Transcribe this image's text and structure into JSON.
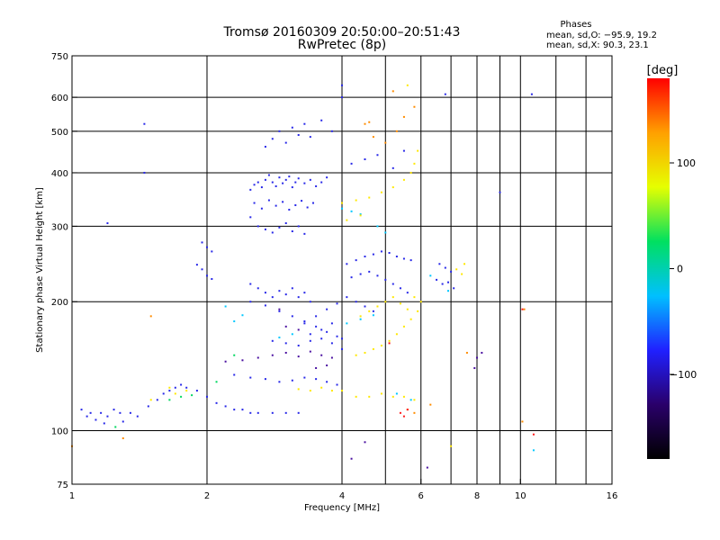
{
  "header": {
    "title": "Tromsø 20160309 20:50:00–20:51:43",
    "subtitle": "RwPretec (8p)"
  },
  "phases_box": {
    "title": "Phases",
    "line_o": "mean, sd,O: −95.9, 19.2",
    "line_x": "mean, sd,X:  90.3, 23.1"
  },
  "chart_data": {
    "type": "scatter",
    "title": "Tromsø 20160309 20:50:00–20:51:43",
    "subtitle": "RwPretec (8p)",
    "xlabel": "Frequency [MHz]",
    "ylabel": "Stationary phase Virtual Height [km]",
    "x_scale": "log",
    "y_scale": "log",
    "xlim": [
      1,
      16
    ],
    "ylim": [
      75,
      750
    ],
    "x_ticks": [
      1,
      2,
      4,
      6,
      8,
      10,
      16
    ],
    "x_minor_ticks": [
      5,
      7,
      9,
      12,
      14
    ],
    "y_ticks": [
      75,
      100,
      200,
      300,
      400,
      500,
      600,
      750
    ],
    "grid": true,
    "colorbar": {
      "label": "[deg]",
      "range": [
        -180,
        180
      ],
      "ticks": [
        100,
        0,
        -100
      ],
      "stops": [
        "#000000",
        "#2a006a",
        "#2020ff",
        "#00c0ff",
        "#00e060",
        "#e6ff00",
        "#ffa000",
        "#ff0000"
      ]
    },
    "series": [
      {
        "name": "",
        "color": "#2828e8",
        "points": [
          [
            1.05,
            112
          ],
          [
            1.08,
            108
          ],
          [
            1.1,
            110
          ],
          [
            1.13,
            106
          ],
          [
            1.16,
            110
          ],
          [
            1.18,
            104
          ],
          [
            1.2,
            108
          ],
          [
            1.24,
            112
          ],
          [
            1.28,
            110
          ],
          [
            1.3,
            105
          ],
          [
            1.35,
            110
          ],
          [
            1.4,
            108
          ],
          [
            1.48,
            114
          ],
          [
            1.55,
            118
          ],
          [
            1.6,
            122
          ],
          [
            1.65,
            124
          ],
          [
            1.7,
            126
          ],
          [
            1.75,
            128
          ],
          [
            1.8,
            126
          ],
          [
            1.9,
            124
          ],
          [
            2.0,
            120
          ],
          [
            2.1,
            116
          ],
          [
            2.2,
            114
          ],
          [
            2.3,
            112
          ],
          [
            2.4,
            112
          ],
          [
            2.5,
            110
          ],
          [
            2.6,
            110
          ],
          [
            2.8,
            110
          ],
          [
            3.0,
            110
          ],
          [
            3.2,
            110
          ],
          [
            2.5,
            365
          ],
          [
            2.55,
            375
          ],
          [
            2.6,
            380
          ],
          [
            2.65,
            370
          ],
          [
            2.7,
            385
          ],
          [
            2.75,
            395
          ],
          [
            2.8,
            380
          ],
          [
            2.85,
            372
          ],
          [
            2.9,
            390
          ],
          [
            2.95,
            378
          ],
          [
            3.0,
            385
          ],
          [
            3.05,
            392
          ],
          [
            3.1,
            370
          ],
          [
            3.15,
            380
          ],
          [
            3.2,
            388
          ],
          [
            3.3,
            378
          ],
          [
            3.4,
            385
          ],
          [
            3.5,
            372
          ],
          [
            3.6,
            380
          ],
          [
            3.7,
            390
          ],
          [
            2.55,
            340
          ],
          [
            2.65,
            330
          ],
          [
            2.75,
            345
          ],
          [
            2.85,
            335
          ],
          [
            2.95,
            342
          ],
          [
            3.05,
            328
          ],
          [
            3.15,
            336
          ],
          [
            3.25,
            344
          ],
          [
            3.35,
            332
          ],
          [
            3.45,
            340
          ],
          [
            2.5,
            315
          ],
          [
            2.6,
            300
          ],
          [
            2.7,
            295
          ],
          [
            2.8,
            290
          ],
          [
            2.9,
            298
          ],
          [
            3.0,
            305
          ],
          [
            3.1,
            292
          ],
          [
            3.2,
            300
          ],
          [
            3.3,
            288
          ],
          [
            2.7,
            460
          ],
          [
            2.8,
            480
          ],
          [
            2.9,
            500
          ],
          [
            3.0,
            470
          ],
          [
            3.1,
            510
          ],
          [
            3.2,
            490
          ],
          [
            3.3,
            520
          ],
          [
            3.4,
            485
          ],
          [
            3.6,
            530
          ],
          [
            3.8,
            500
          ],
          [
            1.95,
            275
          ],
          [
            2.0,
            268
          ],
          [
            2.05,
            262
          ],
          [
            1.95,
            238
          ],
          [
            2.0,
            230
          ],
          [
            2.05,
            226
          ],
          [
            1.9,
            244
          ],
          [
            2.5,
            220
          ],
          [
            2.6,
            215
          ],
          [
            2.7,
            210
          ],
          [
            2.8,
            205
          ],
          [
            2.9,
            212
          ],
          [
            3.0,
            208
          ],
          [
            3.1,
            215
          ],
          [
            3.2,
            205
          ],
          [
            3.3,
            210
          ],
          [
            3.4,
            200
          ],
          [
            2.5,
            200
          ],
          [
            2.7,
            196
          ],
          [
            2.9,
            190
          ],
          [
            3.1,
            185
          ],
          [
            3.3,
            180
          ],
          [
            3.5,
            175
          ],
          [
            3.7,
            170
          ],
          [
            3.9,
            166
          ],
          [
            4.0,
            164
          ],
          [
            2.8,
            162
          ],
          [
            3.0,
            160
          ],
          [
            3.2,
            158
          ],
          [
            3.4,
            162
          ],
          [
            3.6,
            164
          ],
          [
            3.8,
            160
          ],
          [
            4.0,
            155
          ],
          [
            3.3,
            178
          ],
          [
            3.5,
            185
          ],
          [
            3.7,
            192
          ],
          [
            3.9,
            198
          ],
          [
            3.4,
            168
          ],
          [
            3.6,
            172
          ],
          [
            3.8,
            178
          ],
          [
            4.1,
            245
          ],
          [
            4.3,
            250
          ],
          [
            4.5,
            255
          ],
          [
            4.7,
            258
          ],
          [
            4.9,
            262
          ],
          [
            5.1,
            260
          ],
          [
            5.3,
            255
          ],
          [
            5.5,
            252
          ],
          [
            5.7,
            250
          ],
          [
            4.2,
            228
          ],
          [
            4.4,
            232
          ],
          [
            4.6,
            235
          ],
          [
            4.8,
            230
          ],
          [
            5.0,
            225
          ],
          [
            5.2,
            220
          ],
          [
            5.4,
            215
          ],
          [
            5.6,
            210
          ],
          [
            4.1,
            205
          ],
          [
            4.3,
            200
          ],
          [
            4.5,
            195
          ],
          [
            4.7,
            190
          ],
          [
            2.3,
            135
          ],
          [
            2.5,
            133
          ],
          [
            2.7,
            132
          ],
          [
            2.9,
            130
          ],
          [
            3.1,
            131
          ],
          [
            3.3,
            133
          ],
          [
            3.5,
            132
          ],
          [
            3.7,
            130
          ],
          [
            3.9,
            128
          ],
          [
            6.6,
            245
          ],
          [
            6.8,
            240
          ],
          [
            7.0,
            235
          ],
          [
            6.5,
            225
          ],
          [
            6.7,
            220
          ],
          [
            6.9,
            222
          ],
          [
            7.1,
            215
          ],
          [
            4.2,
            420
          ],
          [
            4.5,
            430
          ],
          [
            4.8,
            440
          ],
          [
            5.2,
            410
          ],
          [
            5.5,
            450
          ],
          [
            4.0,
            640
          ],
          [
            4.0,
            600
          ],
          [
            6.8,
            610
          ],
          [
            10.6,
            610
          ],
          [
            1.45,
            400
          ],
          [
            1.45,
            520
          ],
          [
            1.2,
            305
          ],
          [
            9.0,
            360
          ]
        ]
      },
      {
        "name": "",
        "color": "#4a10a0",
        "points": [
          [
            2.6,
            148
          ],
          [
            2.8,
            150
          ],
          [
            3.0,
            152
          ],
          [
            3.2,
            149
          ],
          [
            3.4,
            153
          ],
          [
            3.6,
            150
          ],
          [
            3.8,
            148
          ],
          [
            2.4,
            146
          ],
          [
            2.2,
            145
          ],
          [
            3.0,
            175
          ],
          [
            3.2,
            172
          ],
          [
            2.9,
            192
          ],
          [
            3.5,
            140
          ],
          [
            3.7,
            142
          ],
          [
            8.0,
            148
          ],
          [
            8.2,
            152
          ],
          [
            7.9,
            140
          ],
          [
            6.2,
            82
          ],
          [
            4.5,
            94
          ],
          [
            4.2,
            86
          ]
        ]
      },
      {
        "name": "",
        "color": "#00c8ff",
        "points": [
          [
            4.0,
            330
          ],
          [
            4.2,
            325
          ],
          [
            4.4,
            320
          ],
          [
            4.8,
            300
          ],
          [
            5.0,
            290
          ],
          [
            2.9,
            165
          ],
          [
            3.1,
            168
          ],
          [
            4.1,
            178
          ],
          [
            4.4,
            182
          ],
          [
            4.7,
            186
          ],
          [
            2.3,
            180
          ],
          [
            2.2,
            195
          ],
          [
            2.4,
            186
          ],
          [
            6.3,
            230
          ],
          [
            6.9,
            212
          ],
          [
            5.3,
            122
          ],
          [
            5.7,
            118
          ],
          [
            10.7,
            90
          ]
        ]
      },
      {
        "name": "",
        "color": "#ffe800",
        "points": [
          [
            4.0,
            340
          ],
          [
            4.3,
            345
          ],
          [
            4.6,
            350
          ],
          [
            4.9,
            360
          ],
          [
            5.2,
            370
          ],
          [
            5.5,
            385
          ],
          [
            5.7,
            400
          ],
          [
            5.8,
            420
          ],
          [
            5.9,
            450
          ],
          [
            4.1,
            310
          ],
          [
            4.4,
            318
          ],
          [
            4.3,
            150
          ],
          [
            4.5,
            152
          ],
          [
            4.7,
            155
          ],
          [
            4.9,
            158
          ],
          [
            5.1,
            162
          ],
          [
            5.3,
            168
          ],
          [
            5.5,
            175
          ],
          [
            5.7,
            182
          ],
          [
            5.9,
            190
          ],
          [
            6.0,
            200
          ],
          [
            4.4,
            185
          ],
          [
            4.6,
            190
          ],
          [
            4.8,
            195
          ],
          [
            5.0,
            200
          ],
          [
            5.2,
            205
          ],
          [
            5.4,
            198
          ],
          [
            5.6,
            192
          ],
          [
            5.8,
            205
          ],
          [
            3.2,
            125
          ],
          [
            3.4,
            124
          ],
          [
            3.6,
            126
          ],
          [
            3.8,
            124
          ],
          [
            4.0,
            124
          ],
          [
            4.3,
            120
          ],
          [
            4.6,
            120
          ],
          [
            4.9,
            122
          ],
          [
            5.2,
            120
          ],
          [
            5.5,
            120
          ],
          [
            5.8,
            118
          ],
          [
            1.7,
            122
          ],
          [
            1.8,
            124
          ],
          [
            1.5,
            118
          ],
          [
            1.65,
            126
          ],
          [
            7.2,
            238
          ],
          [
            7.5,
            245
          ],
          [
            7.4,
            232
          ],
          [
            7.0,
            92
          ],
          [
            5.6,
            640
          ]
        ]
      },
      {
        "name": "",
        "color": "#ff8c00",
        "points": [
          [
            4.7,
            485
          ],
          [
            5.0,
            470
          ],
          [
            5.3,
            500
          ],
          [
            5.5,
            540
          ],
          [
            4.5,
            520
          ],
          [
            5.6,
            112
          ],
          [
            5.8,
            110
          ],
          [
            6.3,
            115
          ],
          [
            7.6,
            152
          ],
          [
            10.2,
            192
          ],
          [
            10.1,
            105
          ],
          [
            1.0,
            92
          ],
          [
            1.3,
            96
          ],
          [
            1.5,
            185
          ],
          [
            5.2,
            620
          ],
          [
            5.8,
            570
          ],
          [
            4.6,
            525
          ]
        ]
      },
      {
        "name": "",
        "color": "#00d860",
        "points": [
          [
            1.65,
            118
          ],
          [
            1.75,
            120
          ],
          [
            1.85,
            121
          ],
          [
            1.25,
            102
          ],
          [
            2.3,
            150
          ],
          [
            2.1,
            130
          ]
        ]
      },
      {
        "name": "",
        "color": "#ff1a1a",
        "points": [
          [
            5.4,
            110
          ],
          [
            5.5,
            108
          ],
          [
            5.6,
            112
          ],
          [
            10.1,
            192
          ],
          [
            10.7,
            98
          ],
          [
            5.1,
            160
          ]
        ]
      }
    ]
  }
}
